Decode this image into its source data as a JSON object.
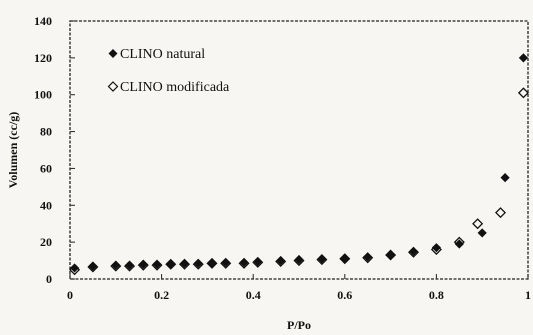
{
  "chart_data": {
    "type": "scatter",
    "xlabel": "P/Po",
    "ylabel": "Volumen (cc/g)",
    "xlim": [
      0,
      1
    ],
    "ylim": [
      0,
      140
    ],
    "xticks": [
      0,
      0.2,
      0.4,
      0.6,
      0.8,
      1
    ],
    "xtick_labels": [
      "0",
      "0.2",
      "0.4",
      "0.6",
      "0.8",
      "1"
    ],
    "yticks": [
      0,
      20,
      40,
      60,
      80,
      100,
      120,
      140
    ],
    "ytick_labels": [
      "0",
      "20",
      "40",
      "60",
      "80",
      "100",
      "120",
      "140"
    ],
    "grid": false,
    "legend_position": "top-left",
    "series": [
      {
        "name": "CLINO natural",
        "marker": "filled-diamond",
        "color": "#111111",
        "x": [
          0.01,
          0.05,
          0.1,
          0.13,
          0.16,
          0.19,
          0.22,
          0.25,
          0.28,
          0.31,
          0.34,
          0.38,
          0.41,
          0.46,
          0.5,
          0.55,
          0.6,
          0.65,
          0.7,
          0.75,
          0.8,
          0.85,
          0.9,
          0.95,
          0.99
        ],
        "y": [
          6,
          7,
          7.5,
          7.5,
          8,
          8,
          8,
          8.5,
          8.5,
          8.5,
          9,
          9,
          9.5,
          10,
          10.5,
          11,
          11,
          12,
          13,
          15,
          17,
          19,
          25,
          55,
          120
        ]
      },
      {
        "name": "CLINO modificada",
        "marker": "open-diamond",
        "color": "#111111",
        "x": [
          0.01,
          0.05,
          0.1,
          0.13,
          0.16,
          0.19,
          0.22,
          0.25,
          0.28,
          0.31,
          0.34,
          0.38,
          0.41,
          0.46,
          0.5,
          0.55,
          0.6,
          0.65,
          0.7,
          0.75,
          0.8,
          0.85,
          0.89,
          0.94,
          0.99
        ],
        "y": [
          5,
          6.5,
          7,
          7,
          7.5,
          7.5,
          8,
          8,
          8,
          8.5,
          8.5,
          8.5,
          9,
          9.5,
          10,
          10.5,
          11,
          11.5,
          13,
          14.5,
          16,
          20,
          30,
          36,
          101
        ]
      }
    ]
  }
}
